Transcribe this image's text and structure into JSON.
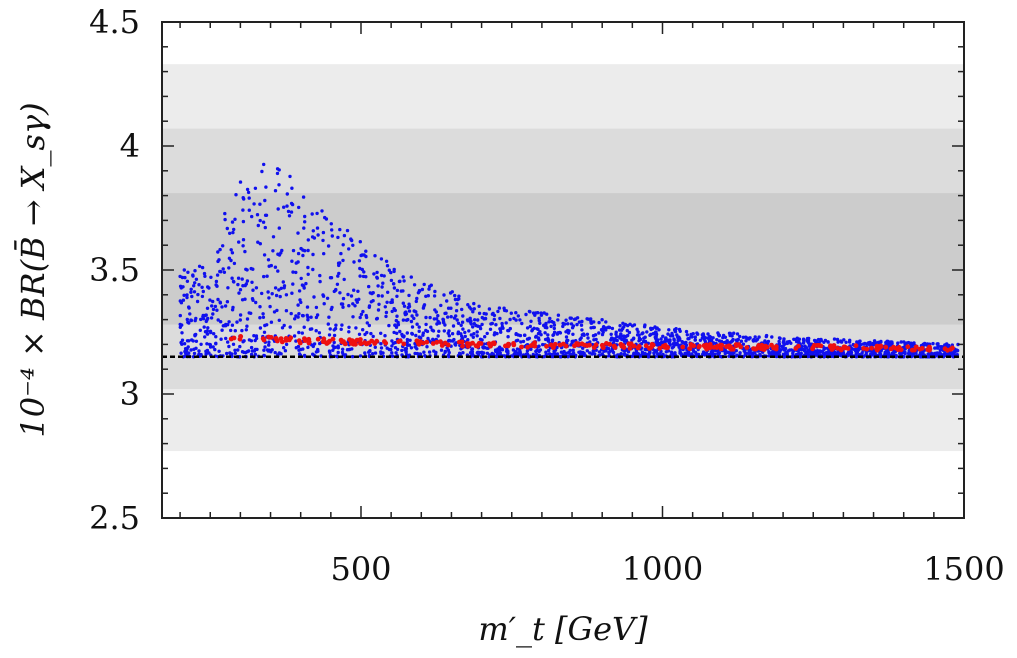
{
  "chart_data": {
    "type": "scatter",
    "xlabel": "m′_t [GeV]",
    "ylabel": "10⁻⁴ × BR(B̄ → X_sγ)",
    "xlim": [
      170,
      1500
    ],
    "ylim": [
      2.5,
      4.5
    ],
    "x_ticks": [
      500,
      1000,
      1500
    ],
    "x_tick_labels": [
      "500",
      "1000",
      "1500"
    ],
    "y_ticks": [
      2.5,
      3,
      3.5,
      4,
      4.5
    ],
    "y_tick_labels": [
      "2.5",
      "3",
      "3.5",
      "4",
      "4.5"
    ],
    "grid": false,
    "bands": [
      {
        "y0": 2.77,
        "y1": 4.33,
        "color": "#ececec"
      },
      {
        "y0": 3.02,
        "y1": 4.07,
        "color": "#dcdcdc"
      },
      {
        "y0": 3.28,
        "y1": 3.81,
        "color": "#cccccc"
      }
    ],
    "reference_line": {
      "y": 3.15,
      "style": "dashed",
      "color": "#000000"
    },
    "series": [
      {
        "color": "#1010ee",
        "x": [
          250,
          280,
          300,
          320,
          340,
          360,
          400,
          450,
          500,
          550,
          600,
          650,
          700,
          800,
          900,
          1000,
          1100,
          1200,
          1300,
          1400,
          1490
        ],
        "y_max": [
          3.52,
          3.78,
          3.86,
          3.89,
          3.93,
          3.96,
          3.82,
          3.72,
          3.62,
          3.52,
          3.45,
          3.42,
          3.36,
          3.33,
          3.3,
          3.27,
          3.25,
          3.23,
          3.22,
          3.21,
          3.2
        ],
        "y_min": [
          3.15,
          3.15,
          3.15,
          3.15,
          3.15,
          3.15,
          3.15,
          3.15,
          3.15,
          3.15,
          3.15,
          3.15,
          3.15,
          3.15,
          3.15,
          3.15,
          3.15,
          3.15,
          3.15,
          3.15,
          3.15
        ]
      },
      {
        "color": "#ee1010",
        "x": [
          280,
          300,
          350,
          400,
          450,
          500,
          600,
          700,
          800,
          900,
          1000,
          1100,
          1200,
          1300,
          1400,
          1490
        ],
        "y": [
          3.23,
          3.225,
          3.22,
          3.215,
          3.212,
          3.21,
          3.205,
          3.2,
          3.197,
          3.195,
          3.192,
          3.19,
          3.188,
          3.186,
          3.185,
          3.183
        ]
      }
    ]
  }
}
